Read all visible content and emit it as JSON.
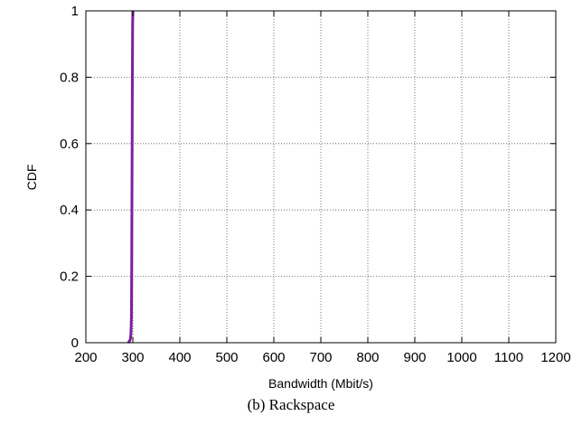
{
  "caption": "(b) Rackspace",
  "chart_data": {
    "type": "line",
    "title": "",
    "xlabel": "Bandwidth (Mbit/s)",
    "ylabel": "CDF",
    "xlim": [
      200,
      1200
    ],
    "ylim": [
      0,
      1
    ],
    "xticks": [
      200,
      300,
      400,
      500,
      600,
      700,
      800,
      900,
      1000,
      1100,
      1200
    ],
    "yticks": [
      0,
      0.2,
      0.4,
      0.6,
      0.8,
      1
    ],
    "ytick_labels": [
      "0",
      "0.2",
      "0.4",
      "0.6",
      "0.8",
      "1"
    ],
    "grid": true,
    "series": [
      {
        "color": "#7b1fa2",
        "x": [
          290,
          293,
          295,
          296,
          297,
          297.5,
          298,
          298.5,
          299,
          299.5,
          300
        ],
        "y": [
          0,
          0.005,
          0.012,
          0.03,
          0.08,
          0.2,
          0.4,
          0.6,
          0.8,
          0.95,
          1
        ]
      }
    ]
  }
}
